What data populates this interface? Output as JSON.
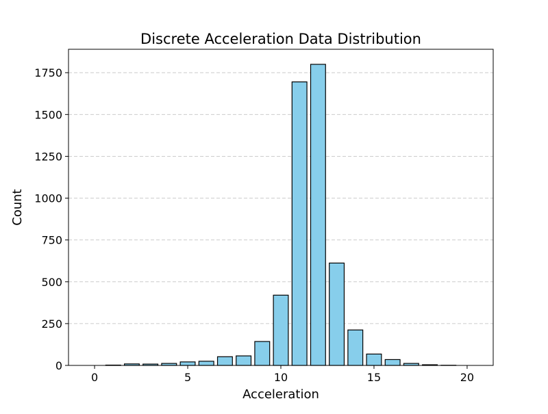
{
  "chart_data": {
    "type": "bar",
    "title": "Discrete Acceleration Data Distribution",
    "xlabel": "Acceleration",
    "ylabel": "Count",
    "x": [
      0,
      1,
      2,
      3,
      4,
      5,
      6,
      7,
      8,
      9,
      10,
      11,
      12,
      13,
      14,
      15,
      16,
      17,
      18,
      19,
      20
    ],
    "values": [
      0,
      2,
      9,
      8,
      12,
      21,
      25,
      52,
      57,
      143,
      420,
      1695,
      1800,
      612,
      212,
      68,
      35,
      12,
      4,
      1,
      0
    ],
    "xlim": [
      -1.4,
      21.4
    ],
    "ylim": [
      0,
      1890
    ],
    "xticks": [
      0,
      5,
      10,
      15,
      20
    ],
    "yticks": [
      0,
      250,
      500,
      750,
      1000,
      1250,
      1500,
      1750
    ],
    "grid": "y-dashed",
    "bar_color": "#87CEEB",
    "edge_color": "#000000",
    "grid_color": "#cccccc"
  }
}
